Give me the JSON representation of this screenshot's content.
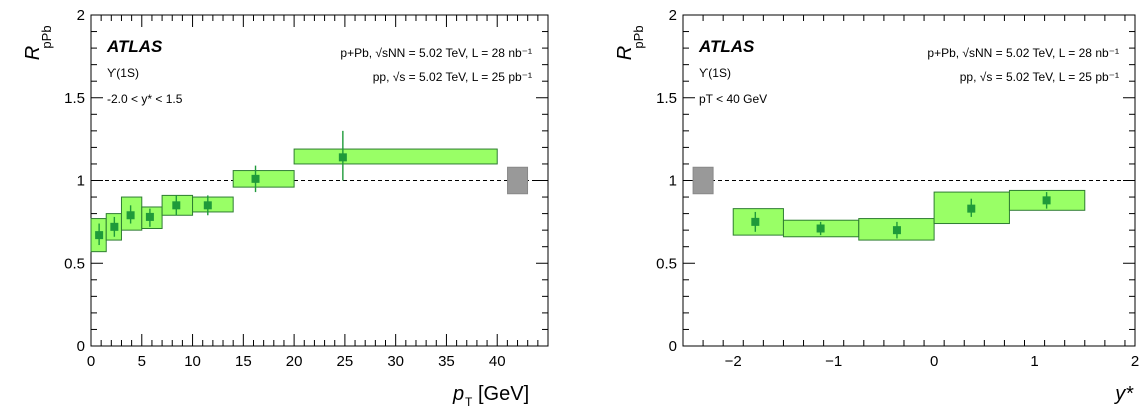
{
  "colors": {
    "box_fill": "#99ff66",
    "box_stroke": "#2e7d32",
    "marker": "#1f9a3a",
    "global_unc": "#999999"
  },
  "chart_data": [
    {
      "type": "scatter",
      "ylabel": "R",
      "ylabel_sub": "pPb",
      "xlabel": "p",
      "xlabel_sub": "T",
      "xlabel_unit": "[GeV]",
      "xlim": [
        0,
        45
      ],
      "ylim": [
        0,
        2
      ],
      "xticks": [
        "0",
        "5",
        "10",
        "15",
        "20",
        "25",
        "30",
        "35",
        "40"
      ],
      "yticks": [
        "0",
        "0.5",
        "1",
        "1.5",
        "2"
      ],
      "atlas": "ATLAS",
      "state": "ϒ(1S)",
      "selection": "-2.0 < y* < 1.5",
      "info1": "p+Pb, √sNN = 5.02 TeV, L = 28 nb⁻¹",
      "info2": "pp, √s = 5.02 TeV, L = 25 pb⁻¹",
      "reference_line": 1,
      "points": [
        {
          "x": 0.8,
          "y": 0.67,
          "xlo": 0,
          "xhi": 1.5,
          "slo": 0.57,
          "shi": 0.77,
          "elo": 0.61,
          "ehi": 0.74
        },
        {
          "x": 2.3,
          "y": 0.72,
          "xlo": 1.5,
          "xhi": 3,
          "slo": 0.64,
          "shi": 0.8,
          "elo": 0.66,
          "ehi": 0.78
        },
        {
          "x": 3.9,
          "y": 0.79,
          "xlo": 3,
          "xhi": 5,
          "slo": 0.7,
          "shi": 0.9,
          "elo": 0.74,
          "ehi": 0.85
        },
        {
          "x": 5.8,
          "y": 0.78,
          "xlo": 5,
          "xhi": 7,
          "slo": 0.71,
          "shi": 0.84,
          "elo": 0.72,
          "ehi": 0.83
        },
        {
          "x": 8.4,
          "y": 0.85,
          "xlo": 7,
          "xhi": 10,
          "slo": 0.79,
          "shi": 0.91,
          "elo": 0.79,
          "ehi": 0.91
        },
        {
          "x": 11.5,
          "y": 0.85,
          "xlo": 10,
          "xhi": 14,
          "slo": 0.81,
          "shi": 0.9,
          "elo": 0.79,
          "ehi": 0.91
        },
        {
          "x": 16.2,
          "y": 1.01,
          "xlo": 14,
          "xhi": 20,
          "slo": 0.96,
          "shi": 1.06,
          "elo": 0.93,
          "ehi": 1.09
        },
        {
          "x": 24.8,
          "y": 1.14,
          "xlo": 20,
          "xhi": 40,
          "slo": 1.1,
          "shi": 1.19,
          "elo": 1.0,
          "ehi": 1.3
        }
      ],
      "global": {
        "x": 42,
        "lo": 0.92,
        "hi": 1.08
      }
    },
    {
      "type": "scatter",
      "ylabel": "R",
      "ylabel_sub": "pPb",
      "xlabel": "y*",
      "xlabel_sub": "",
      "xlabel_unit": "",
      "xlim": [
        -2.5,
        2
      ],
      "ylim": [
        0,
        2
      ],
      "xticks": [
        "−2",
        "−1",
        "0",
        "1",
        "2"
      ],
      "yticks": [
        "0",
        "0.5",
        "1",
        "1.5",
        "2"
      ],
      "atlas": "ATLAS",
      "state": "ϒ(1S)",
      "selection": "pT < 40 GeV",
      "info1": "p+Pb, √sNN = 5.02 TeV, L = 28 nb⁻¹",
      "info2": "pp, √s = 5.02 TeV, L = 25 pb⁻¹",
      "reference_line": 1,
      "points": [
        {
          "x": -1.78,
          "y": 0.75,
          "xlo": -2.0,
          "xhi": -1.5,
          "slo": 0.67,
          "shi": 0.83,
          "elo": 0.69,
          "ehi": 0.81
        },
        {
          "x": -1.13,
          "y": 0.71,
          "xlo": -1.5,
          "xhi": -0.75,
          "slo": 0.66,
          "shi": 0.76,
          "elo": 0.67,
          "ehi": 0.75
        },
        {
          "x": -0.37,
          "y": 0.7,
          "xlo": -0.75,
          "xhi": 0,
          "slo": 0.64,
          "shi": 0.77,
          "elo": 0.65,
          "ehi": 0.75
        },
        {
          "x": 0.37,
          "y": 0.83,
          "xlo": 0,
          "xhi": 0.75,
          "slo": 0.74,
          "shi": 0.93,
          "elo": 0.78,
          "ehi": 0.89
        },
        {
          "x": 1.12,
          "y": 0.88,
          "xlo": 0.75,
          "xhi": 1.5,
          "slo": 0.82,
          "shi": 0.94,
          "elo": 0.83,
          "ehi": 0.93
        }
      ],
      "global": {
        "x": -2.3,
        "lo": 0.92,
        "hi": 1.08
      }
    }
  ]
}
